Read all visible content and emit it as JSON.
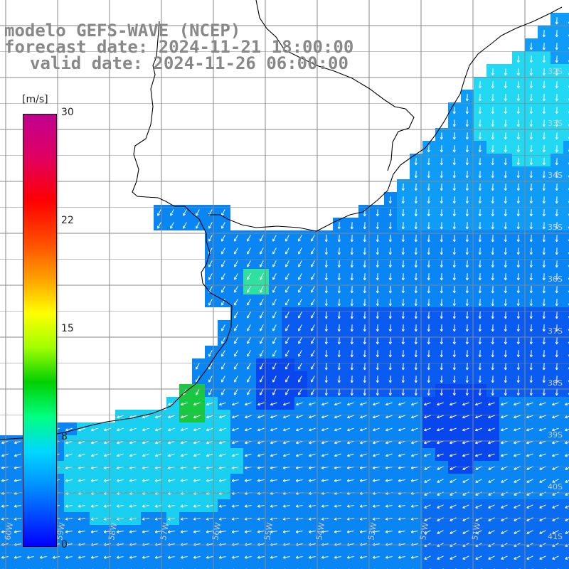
{
  "header": {
    "line1": "modelo GEFS-WAVE (NCEP)",
    "line2": "forecast date: 2024-11-21 18:00:00",
    "line3": "valid date: 2024-11-26 06:00:00"
  },
  "colorbar": {
    "unit": "[m/s]",
    "ticks": [
      {
        "label": "30",
        "value": 30
      },
      {
        "label": "22",
        "value": 22
      },
      {
        "label": "15",
        "value": 15
      },
      {
        "label": "8",
        "value": 8
      },
      {
        "label": "0",
        "value": 0
      }
    ],
    "range": [
      0,
      30
    ]
  },
  "map": {
    "lat_labels": [
      "32S",
      "33S",
      "34S",
      "35S",
      "36S",
      "37S",
      "38S",
      "39S",
      "40S",
      "41S"
    ],
    "lon_labels": [
      "60W",
      "59W",
      "58W",
      "57W",
      "56W",
      "55W",
      "54W",
      "53W",
      "52W",
      "51W"
    ],
    "colors": {
      "land": "#ffffff",
      "grid": "#888888",
      "coast": "#000000",
      "arrow": "#ffffff"
    }
  }
}
